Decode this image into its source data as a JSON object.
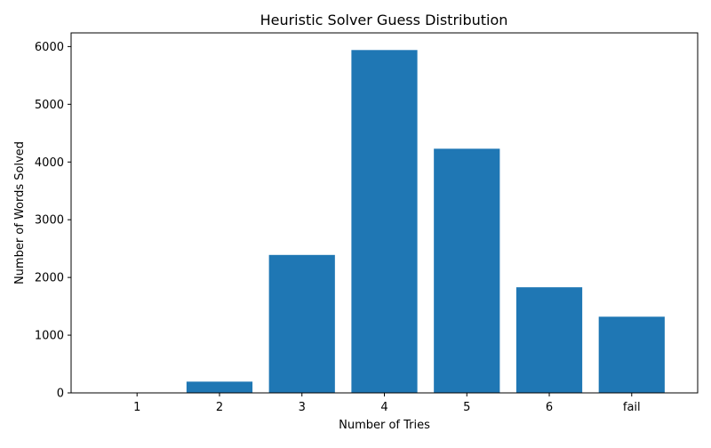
{
  "chart_data": {
    "type": "bar",
    "title": "Heuristic Solver Guess Distribution",
    "xlabel": "Number of Tries",
    "ylabel": "Number of Words Solved",
    "categories": [
      "1",
      "2",
      "3",
      "4",
      "5",
      "6",
      "fail"
    ],
    "values": [
      1,
      195,
      2390,
      5940,
      4230,
      1830,
      1320
    ],
    "ylim": [
      0,
      6237
    ],
    "yticks": [
      0,
      1000,
      2000,
      3000,
      4000,
      5000,
      6000
    ],
    "grid": false,
    "legend": "none",
    "bar_color": "#1f77b4"
  }
}
